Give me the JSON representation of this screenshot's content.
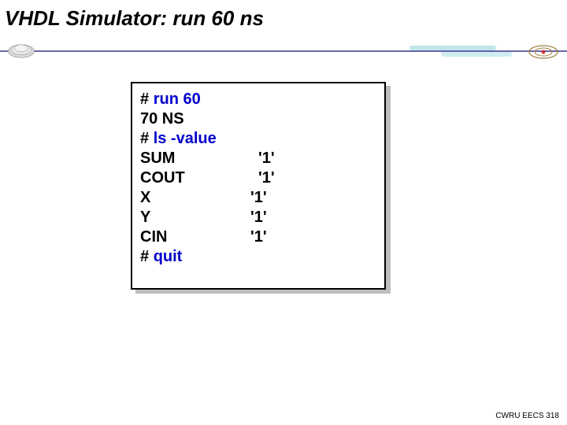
{
  "title": "VHDL Simulator: run 60 ns",
  "colors": {
    "title": "#000000",
    "divider": "#6666aa",
    "command": "#0000cc",
    "output": "#000000",
    "terminal_border": "#000000",
    "terminal_bg": "#ffffff",
    "shadow": "#bdbdbd",
    "streak": "#bfe6ea"
  },
  "terminal": {
    "lines": [
      {
        "prefix": "# ",
        "cmd": "run 60"
      },
      {
        "out": "70 NS"
      },
      {
        "prefix": "# ",
        "cmd": "ls -value"
      }
    ],
    "signals": [
      {
        "name": "SUM",
        "value": "'1'",
        "pad": true
      },
      {
        "name": "COUT",
        "value": "'1'",
        "pad": true
      },
      {
        "name": "X",
        "value": "'1'",
        "pad": false
      },
      {
        "name": "Y",
        "value": "'1'",
        "pad": false
      },
      {
        "name": "CIN",
        "value": "'1'",
        "pad": false
      }
    ],
    "tail": [
      {
        "prefix": "# ",
        "cmd": "quit"
      }
    ]
  },
  "footer": "CWRU EECS 318"
}
